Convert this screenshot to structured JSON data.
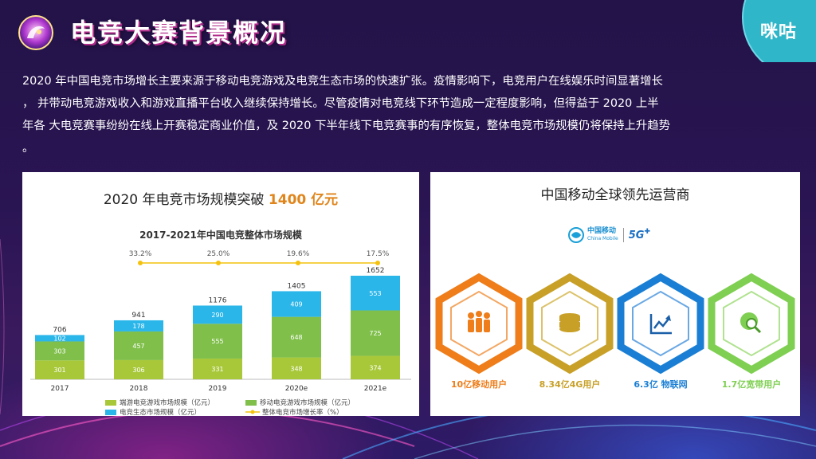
{
  "header": {
    "title": "电竞大赛背景概况",
    "brand": "咪咕"
  },
  "intro": {
    "line1": "2020 年中国电竞市场增长主要来源于移动电竞游戏及电竞生态市场的快速扩张。疫情影响下，电竞用户在线娱乐时间显著增长",
    "line2": "，  并带动电竞游戏收入和游戏直播平台收入继续保持增长。尽管疫情对电竞线下环节造成一定程度影响，但得益于  2020 上半",
    "line3": "年各 大电竞赛事纷纷在线上开赛稳定商业价值，及 2020 下半年线下电竞赛事的有序恢复，整体电竞市场规模仍将保持上升趋势",
    "line4": "。"
  },
  "left_card": {
    "title_prefix": "2020 年电竞市场规模突破 ",
    "title_highlight": "1400 亿元"
  },
  "chart_data": {
    "type": "bar",
    "title": "2017-2021年中国电竞整体市场规模",
    "categories": [
      "2017",
      "2018",
      "2019",
      "2020e",
      "2021e"
    ],
    "series": [
      {
        "name": "端游电竞游戏市场规模（亿元）",
        "values": [
          301,
          306,
          331,
          348,
          374
        ],
        "color": "#a8c83a"
      },
      {
        "name": "移动电竞游戏市场规模（亿元）",
        "values": [
          303,
          457,
          555,
          648,
          725
        ],
        "color": "#7fbf4a"
      },
      {
        "name": "电竞生态市场规模（亿元）",
        "values": [
          102,
          178,
          290,
          409,
          553
        ],
        "color": "#2bb6ea"
      }
    ],
    "totals": [
      706,
      941,
      1176,
      1405,
      1652
    ],
    "growth": {
      "name": "整体电竞市场增长率（%）",
      "values": [
        "33.2%",
        "25.0%",
        "19.6%",
        "17.5%"
      ],
      "color": "#f4c20d"
    },
    "legend_position": "bottom",
    "stacked": true
  },
  "right_card": {
    "title": "中国移动全球领先运营商",
    "logo_cn": "中国移动",
    "logo_en": "China Mobile",
    "logo_5g": "5G",
    "stats": [
      {
        "label": "10亿移动用户",
        "color": "#ee7d1a",
        "icon": "users-icon"
      },
      {
        "label": "8.34亿4G用户",
        "color": "#c8a028",
        "icon": "coins-icon"
      },
      {
        "label": "6.3亿 物联网",
        "color": "#1a7fd4",
        "icon": "trend-chart-icon"
      },
      {
        "label": "1.7亿宽带用户",
        "color": "#7fcf52",
        "icon": "globe-search-icon"
      }
    ]
  }
}
